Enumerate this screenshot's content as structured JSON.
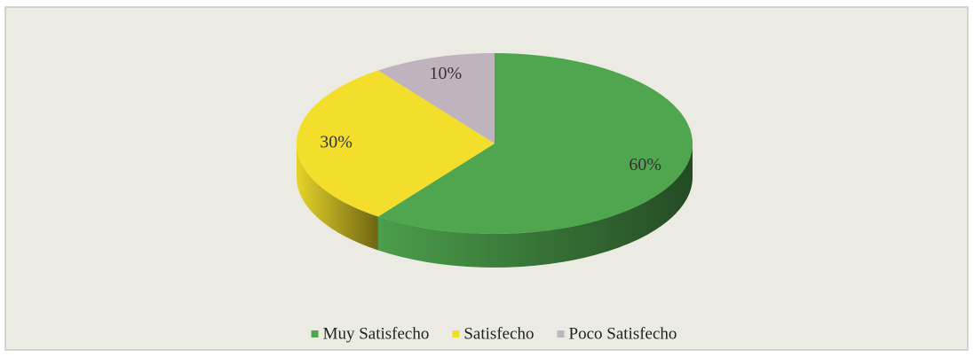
{
  "chart_data": {
    "type": "pie3d",
    "categories": [
      "Muy Satisfecho",
      "Satisfecho",
      "Poco Satisfecho"
    ],
    "values": [
      60,
      30,
      10
    ],
    "value_labels": [
      "60%",
      "30%",
      "10%"
    ],
    "colors": [
      "#4fa64f",
      "#f3df2b",
      "#bfb3bd"
    ],
    "legend": "bottom"
  }
}
